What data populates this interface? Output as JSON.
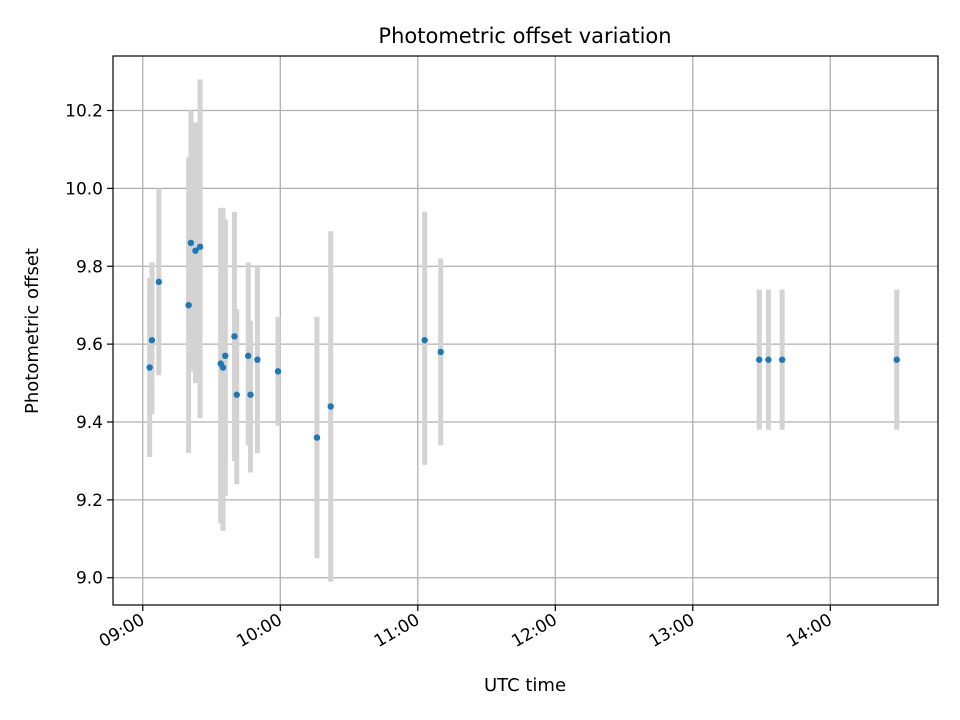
{
  "chart_data": {
    "type": "scatter",
    "title": "Photometric offset variation",
    "xlabel": "UTC time",
    "ylabel": "Photometric offset",
    "x_tick_labels": [
      "09:00",
      "10:00",
      "11:00",
      "12:00",
      "13:00",
      "14:00"
    ],
    "y_tick_labels": [
      "9.0",
      "9.2",
      "9.4",
      "9.6",
      "9.8",
      "10.0",
      "10.2"
    ],
    "x_ticks": [
      "09:00",
      "10:00",
      "11:00",
      "12:00",
      "13:00",
      "14:00"
    ],
    "y_ticks": [
      9.0,
      9.2,
      9.4,
      9.6,
      9.8,
      10.0,
      10.2
    ],
    "xlim": [
      "08:47",
      "14:47"
    ],
    "ylim": [
      8.93,
      10.34
    ],
    "grid": true,
    "marker_color": "#1f77b4",
    "errorbar_color": "#d3d3d3",
    "points": [
      {
        "x": "09:03",
        "y": 9.54,
        "err_low": 9.31,
        "err_high": 9.77
      },
      {
        "x": "09:04",
        "y": 9.61,
        "err_low": 9.42,
        "err_high": 9.81
      },
      {
        "x": "09:07",
        "y": 9.76,
        "err_low": 9.52,
        "err_high": 10.0
      },
      {
        "x": "09:20",
        "y": 9.7,
        "err_low": 9.32,
        "err_high": 10.08
      },
      {
        "x": "09:21",
        "y": 9.86,
        "err_low": 9.53,
        "err_high": 10.2
      },
      {
        "x": "09:23",
        "y": 9.84,
        "err_low": 9.5,
        "err_high": 10.17
      },
      {
        "x": "09:25",
        "y": 9.85,
        "err_low": 9.41,
        "err_high": 10.28
      },
      {
        "x": "09:34",
        "y": 9.55,
        "err_low": 9.14,
        "err_high": 9.95
      },
      {
        "x": "09:35",
        "y": 9.54,
        "err_low": 9.12,
        "err_high": 9.95
      },
      {
        "x": "09:36",
        "y": 9.57,
        "err_low": 9.21,
        "err_high": 9.92
      },
      {
        "x": "09:40",
        "y": 9.62,
        "err_low": 9.3,
        "err_high": 9.94
      },
      {
        "x": "09:41",
        "y": 9.47,
        "err_low": 9.24,
        "err_high": 9.69
      },
      {
        "x": "09:46",
        "y": 9.57,
        "err_low": 9.34,
        "err_high": 9.81
      },
      {
        "x": "09:47",
        "y": 9.47,
        "err_low": 9.27,
        "err_high": 9.66
      },
      {
        "x": "09:50",
        "y": 9.56,
        "err_low": 9.32,
        "err_high": 9.8
      },
      {
        "x": "09:59",
        "y": 9.53,
        "err_low": 9.39,
        "err_high": 9.67
      },
      {
        "x": "10:16",
        "y": 9.36,
        "err_low": 9.05,
        "err_high": 9.67
      },
      {
        "x": "10:22",
        "y": 9.44,
        "err_low": 8.99,
        "err_high": 9.89
      },
      {
        "x": "11:03",
        "y": 9.61,
        "err_low": 9.29,
        "err_high": 9.94
      },
      {
        "x": "11:10",
        "y": 9.58,
        "err_low": 9.34,
        "err_high": 9.82
      },
      {
        "x": "13:29",
        "y": 9.56,
        "err_low": 9.38,
        "err_high": 9.74
      },
      {
        "x": "13:33",
        "y": 9.56,
        "err_low": 9.38,
        "err_high": 9.74
      },
      {
        "x": "13:39",
        "y": 9.56,
        "err_low": 9.38,
        "err_high": 9.74
      },
      {
        "x": "14:29",
        "y": 9.56,
        "err_low": 9.38,
        "err_high": 9.74
      }
    ]
  }
}
